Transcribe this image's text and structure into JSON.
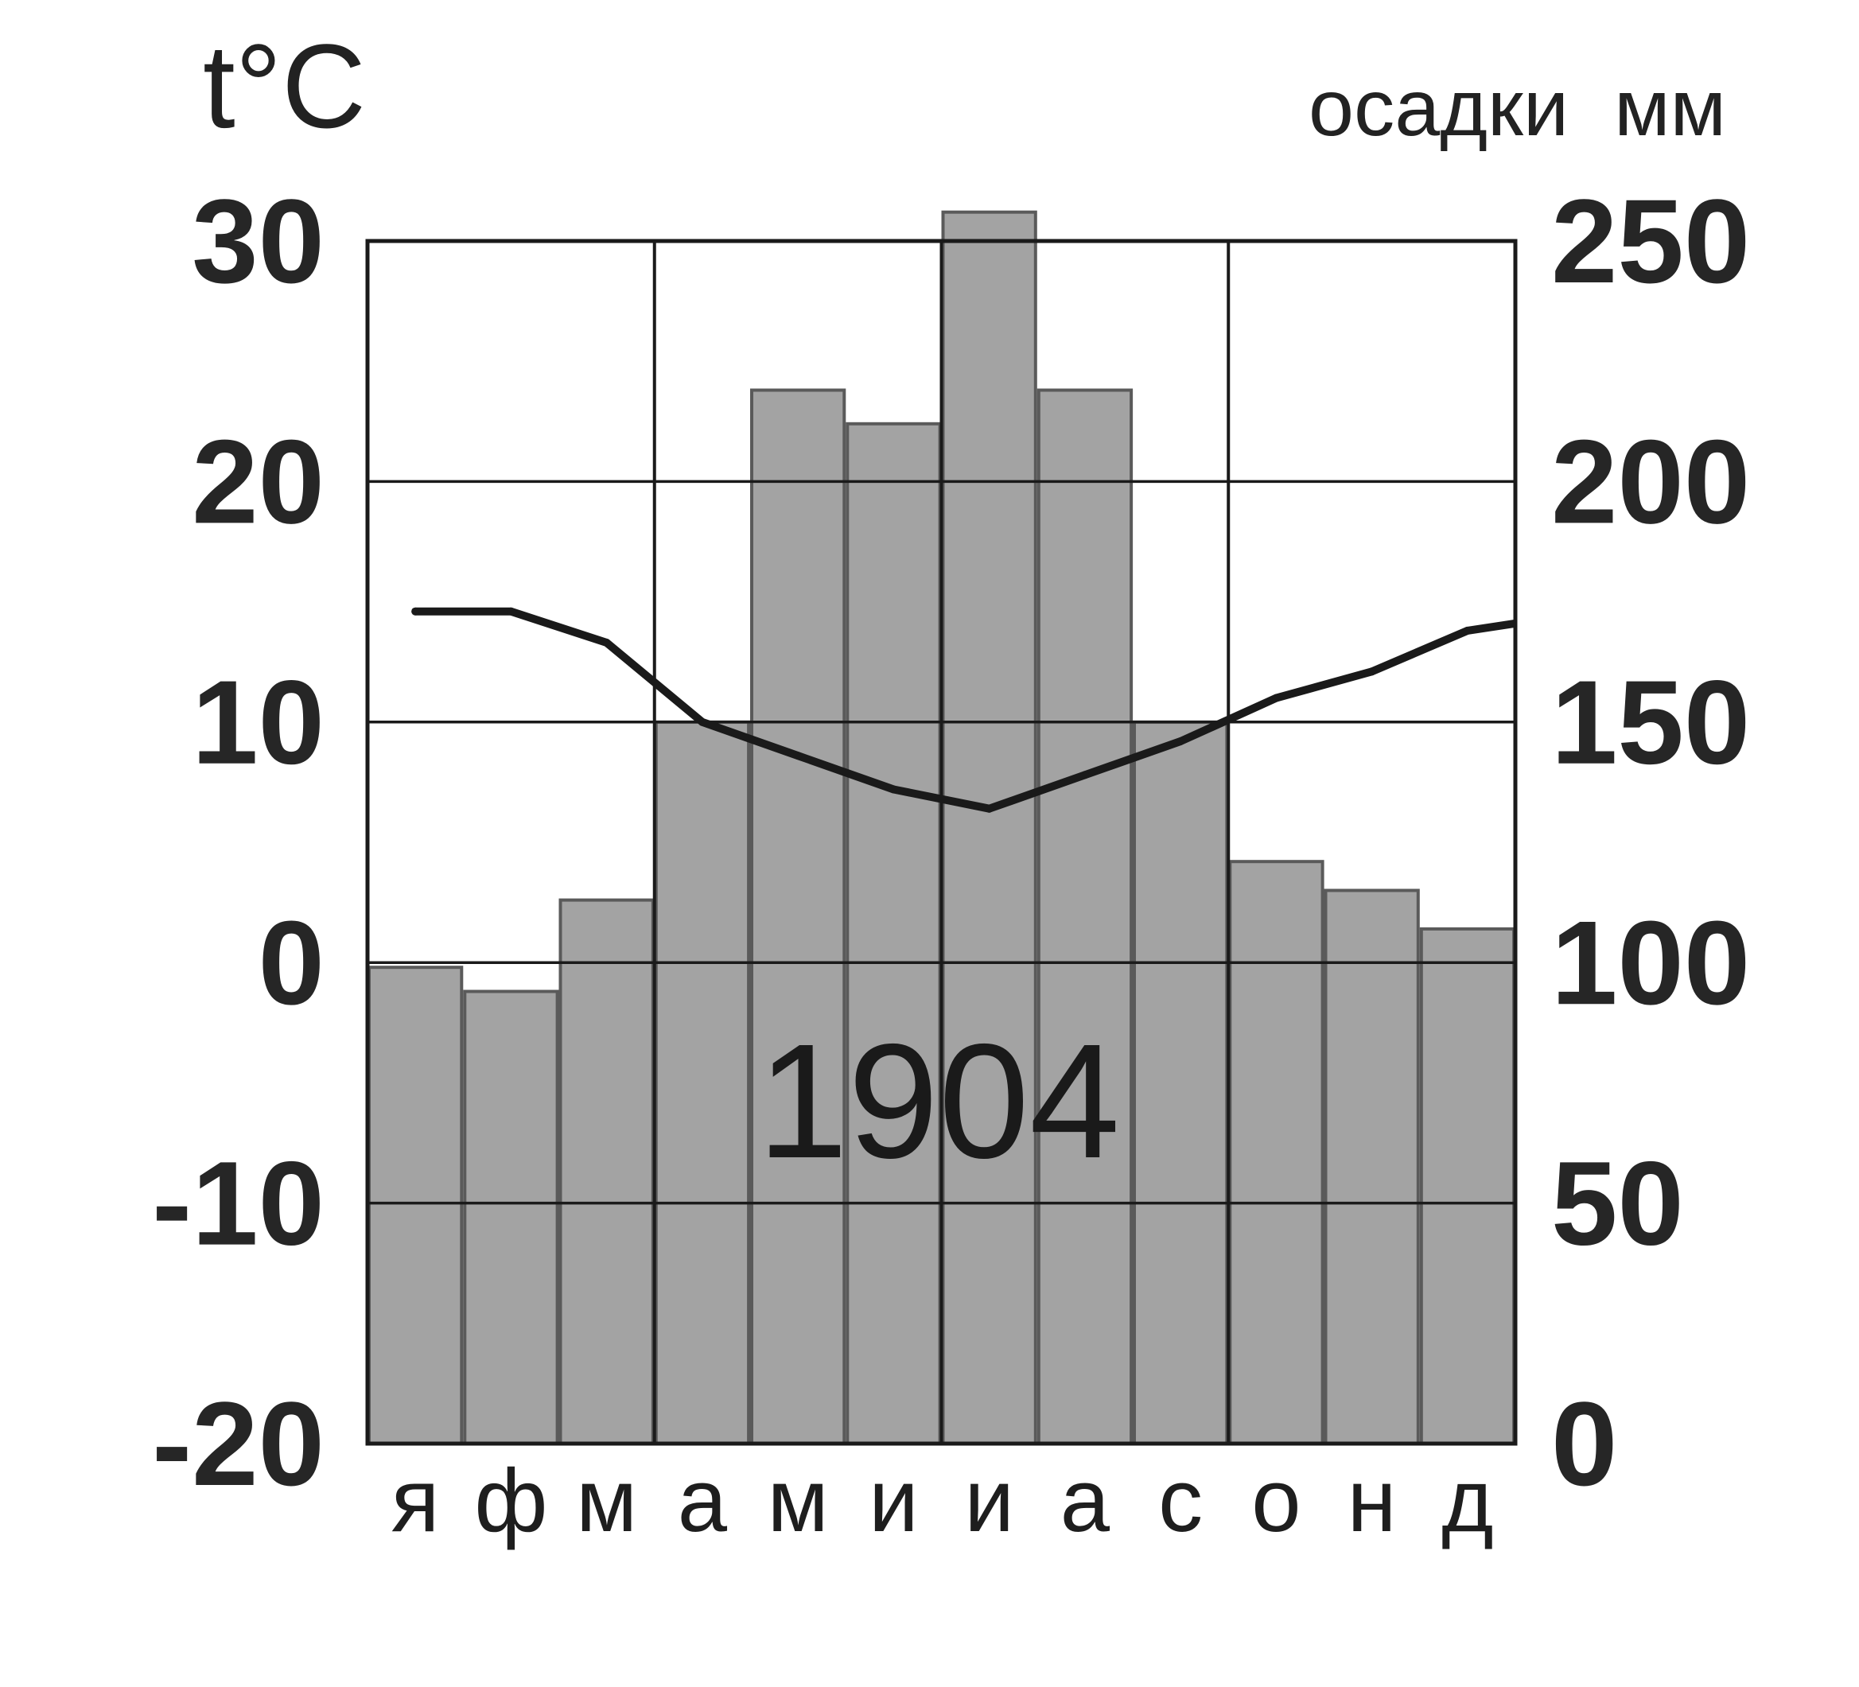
{
  "chart_data": {
    "type": "bar",
    "categories": [
      "я",
      "ф",
      "м",
      "а",
      "м",
      "и",
      "и",
      "а",
      "с",
      "о",
      "н",
      "д"
    ],
    "series": [
      {
        "axis": "right",
        "type": "bar",
        "values": [
          99,
          94,
          113,
          150,
          219,
          212,
          256,
          219,
          150,
          121,
          115,
          107
        ]
      },
      {
        "axis": "left",
        "type": "line",
        "values": [
          14.6,
          14.6,
          13.3,
          10.0,
          8.6,
          7.2,
          6.4,
          7.8,
          9.2,
          11.0,
          12.1,
          13.8
        ]
      }
    ],
    "left_axis": {
      "label": "t°C",
      "ylim": [
        -20,
        30
      ],
      "ticks": [
        "30",
        "20",
        "10",
        "0",
        "-10",
        "-20"
      ]
    },
    "right_axis": {
      "label": "осадки  мм",
      "ylim": [
        0,
        250
      ],
      "ticks": [
        "250",
        "200",
        "150",
        "100",
        "50",
        "0"
      ]
    },
    "annotation": "1904",
    "grid": true,
    "colors": {
      "bar_fill": "#a3a3a3",
      "bar_stroke": "#5a5a5a",
      "line": "#1a1a1a",
      "grid": "#1a1a1a"
    }
  }
}
